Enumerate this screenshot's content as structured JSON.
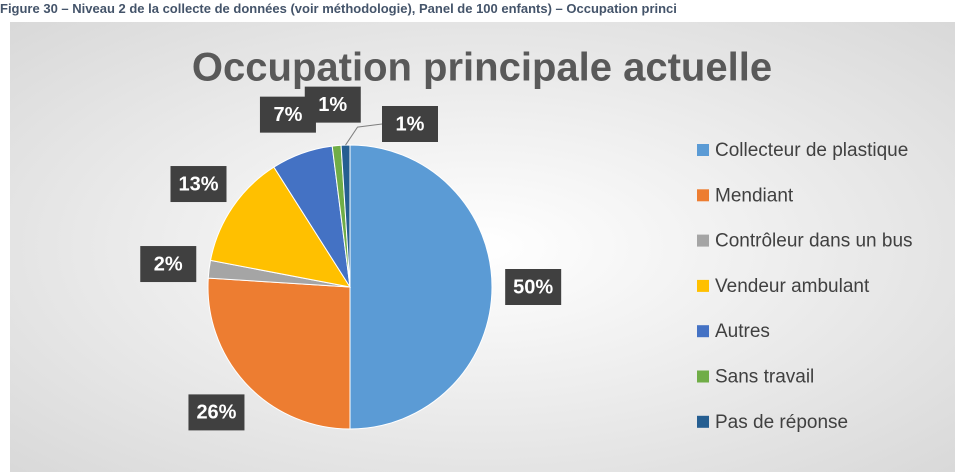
{
  "caption": "Figure 30 – Niveau 2 de la collecte de données (voir méthodologie), Panel de 100 enfants) – Occupation princi",
  "chart_data": {
    "type": "pie",
    "title": "Occupation principale actuelle",
    "categories": [
      "Collecteur de plastique",
      "Mendiant",
      "Contrôleur dans un bus",
      "Vendeur ambulant",
      "Autres",
      "Sans travail",
      "Pas de réponse"
    ],
    "values": [
      50,
      26,
      2,
      13,
      7,
      1,
      1
    ],
    "value_labels": [
      "50%",
      "26%",
      "2%",
      "13%",
      "7%",
      "1%",
      "1%"
    ],
    "colors": [
      "#5b9bd5",
      "#ed7d31",
      "#a5a5a5",
      "#ffc000",
      "#4472c4",
      "#70ad47",
      "#255e91"
    ],
    "legend": "right"
  }
}
